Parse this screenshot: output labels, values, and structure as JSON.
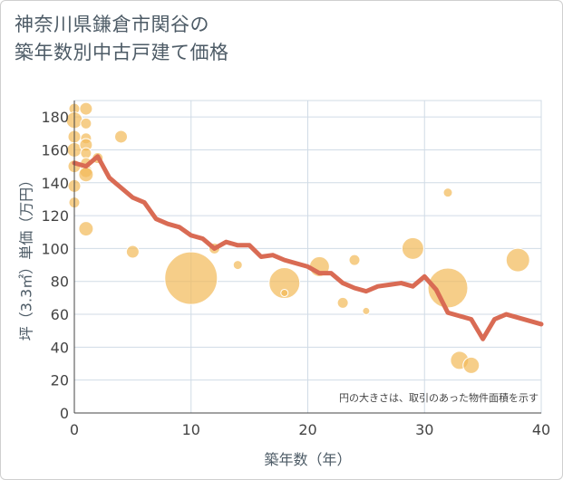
{
  "title": {
    "line1": "神奈川県鎌倉市関谷の",
    "line2": "築年数別中古戸建て価格"
  },
  "colors": {
    "bubble": "#f3bb5c",
    "line": "#d96b54",
    "grid": "#d0dbe6",
    "axis": "#444444"
  },
  "chart_data": {
    "type": "scatter+line",
    "xlabel": "築年数（年）",
    "ylabel": "坪（3.3㎡）単価（万円）",
    "xlim": [
      0,
      40
    ],
    "ylim": [
      0,
      190
    ],
    "xticks": [
      0,
      10,
      20,
      30,
      40
    ],
    "yticks": [
      0,
      20,
      40,
      60,
      80,
      100,
      120,
      140,
      160,
      180
    ],
    "note": "円の大きさは、取引のあった物件面積を示す",
    "scatter": [
      {
        "x": 0,
        "y": 185,
        "size": 6
      },
      {
        "x": 0,
        "y": 178,
        "size": 9
      },
      {
        "x": 0,
        "y": 168,
        "size": 7
      },
      {
        "x": 0,
        "y": 160,
        "size": 8
      },
      {
        "x": 0,
        "y": 150,
        "size": 7
      },
      {
        "x": 0,
        "y": 138,
        "size": 7
      },
      {
        "x": 0,
        "y": 128,
        "size": 6
      },
      {
        "x": 1,
        "y": 185,
        "size": 7
      },
      {
        "x": 1,
        "y": 176,
        "size": 6
      },
      {
        "x": 1,
        "y": 167,
        "size": 6
      },
      {
        "x": 1,
        "y": 163,
        "size": 7
      },
      {
        "x": 1,
        "y": 158,
        "size": 6
      },
      {
        "x": 1,
        "y": 152,
        "size": 6
      },
      {
        "x": 1,
        "y": 147,
        "size": 7
      },
      {
        "x": 1,
        "y": 145,
        "size": 8
      },
      {
        "x": 1,
        "y": 112,
        "size": 8
      },
      {
        "x": 2,
        "y": 155,
        "size": 6
      },
      {
        "x": 4,
        "y": 168,
        "size": 7
      },
      {
        "x": 5,
        "y": 98,
        "size": 7
      },
      {
        "x": 10,
        "y": 82,
        "size": 29
      },
      {
        "x": 12,
        "y": 100,
        "size": 6
      },
      {
        "x": 14,
        "y": 90,
        "size": 5
      },
      {
        "x": 18,
        "y": 79,
        "size": 17
      },
      {
        "x": 18,
        "y": 73,
        "size": 4
      },
      {
        "x": 21,
        "y": 89,
        "size": 11
      },
      {
        "x": 23,
        "y": 67,
        "size": 6
      },
      {
        "x": 24,
        "y": 93,
        "size": 6
      },
      {
        "x": 25,
        "y": 62,
        "size": 4
      },
      {
        "x": 29,
        "y": 100,
        "size": 12
      },
      {
        "x": 32,
        "y": 134,
        "size": 5
      },
      {
        "x": 32,
        "y": 76,
        "size": 22
      },
      {
        "x": 33,
        "y": 32,
        "size": 10
      },
      {
        "x": 34,
        "y": 29,
        "size": 9
      },
      {
        "x": 38,
        "y": 93,
        "size": 13
      }
    ],
    "line": {
      "x": [
        0,
        1,
        2,
        3,
        4,
        5,
        6,
        7,
        8,
        9,
        10,
        11,
        12,
        13,
        14,
        15,
        16,
        17,
        18,
        19,
        20,
        21,
        22,
        23,
        24,
        25,
        26,
        27,
        28,
        29,
        30,
        31,
        32,
        33,
        34,
        35,
        36,
        37,
        38,
        39,
        40
      ],
      "y": [
        152,
        150,
        156,
        143,
        137,
        131,
        128,
        118,
        115,
        113,
        108,
        106,
        100,
        104,
        102,
        102,
        95,
        96,
        93,
        91,
        89,
        85,
        85,
        79,
        76,
        74,
        77,
        78,
        79,
        77,
        83,
        75,
        61,
        59,
        57,
        45,
        57,
        60,
        58,
        56,
        54
      ]
    }
  }
}
